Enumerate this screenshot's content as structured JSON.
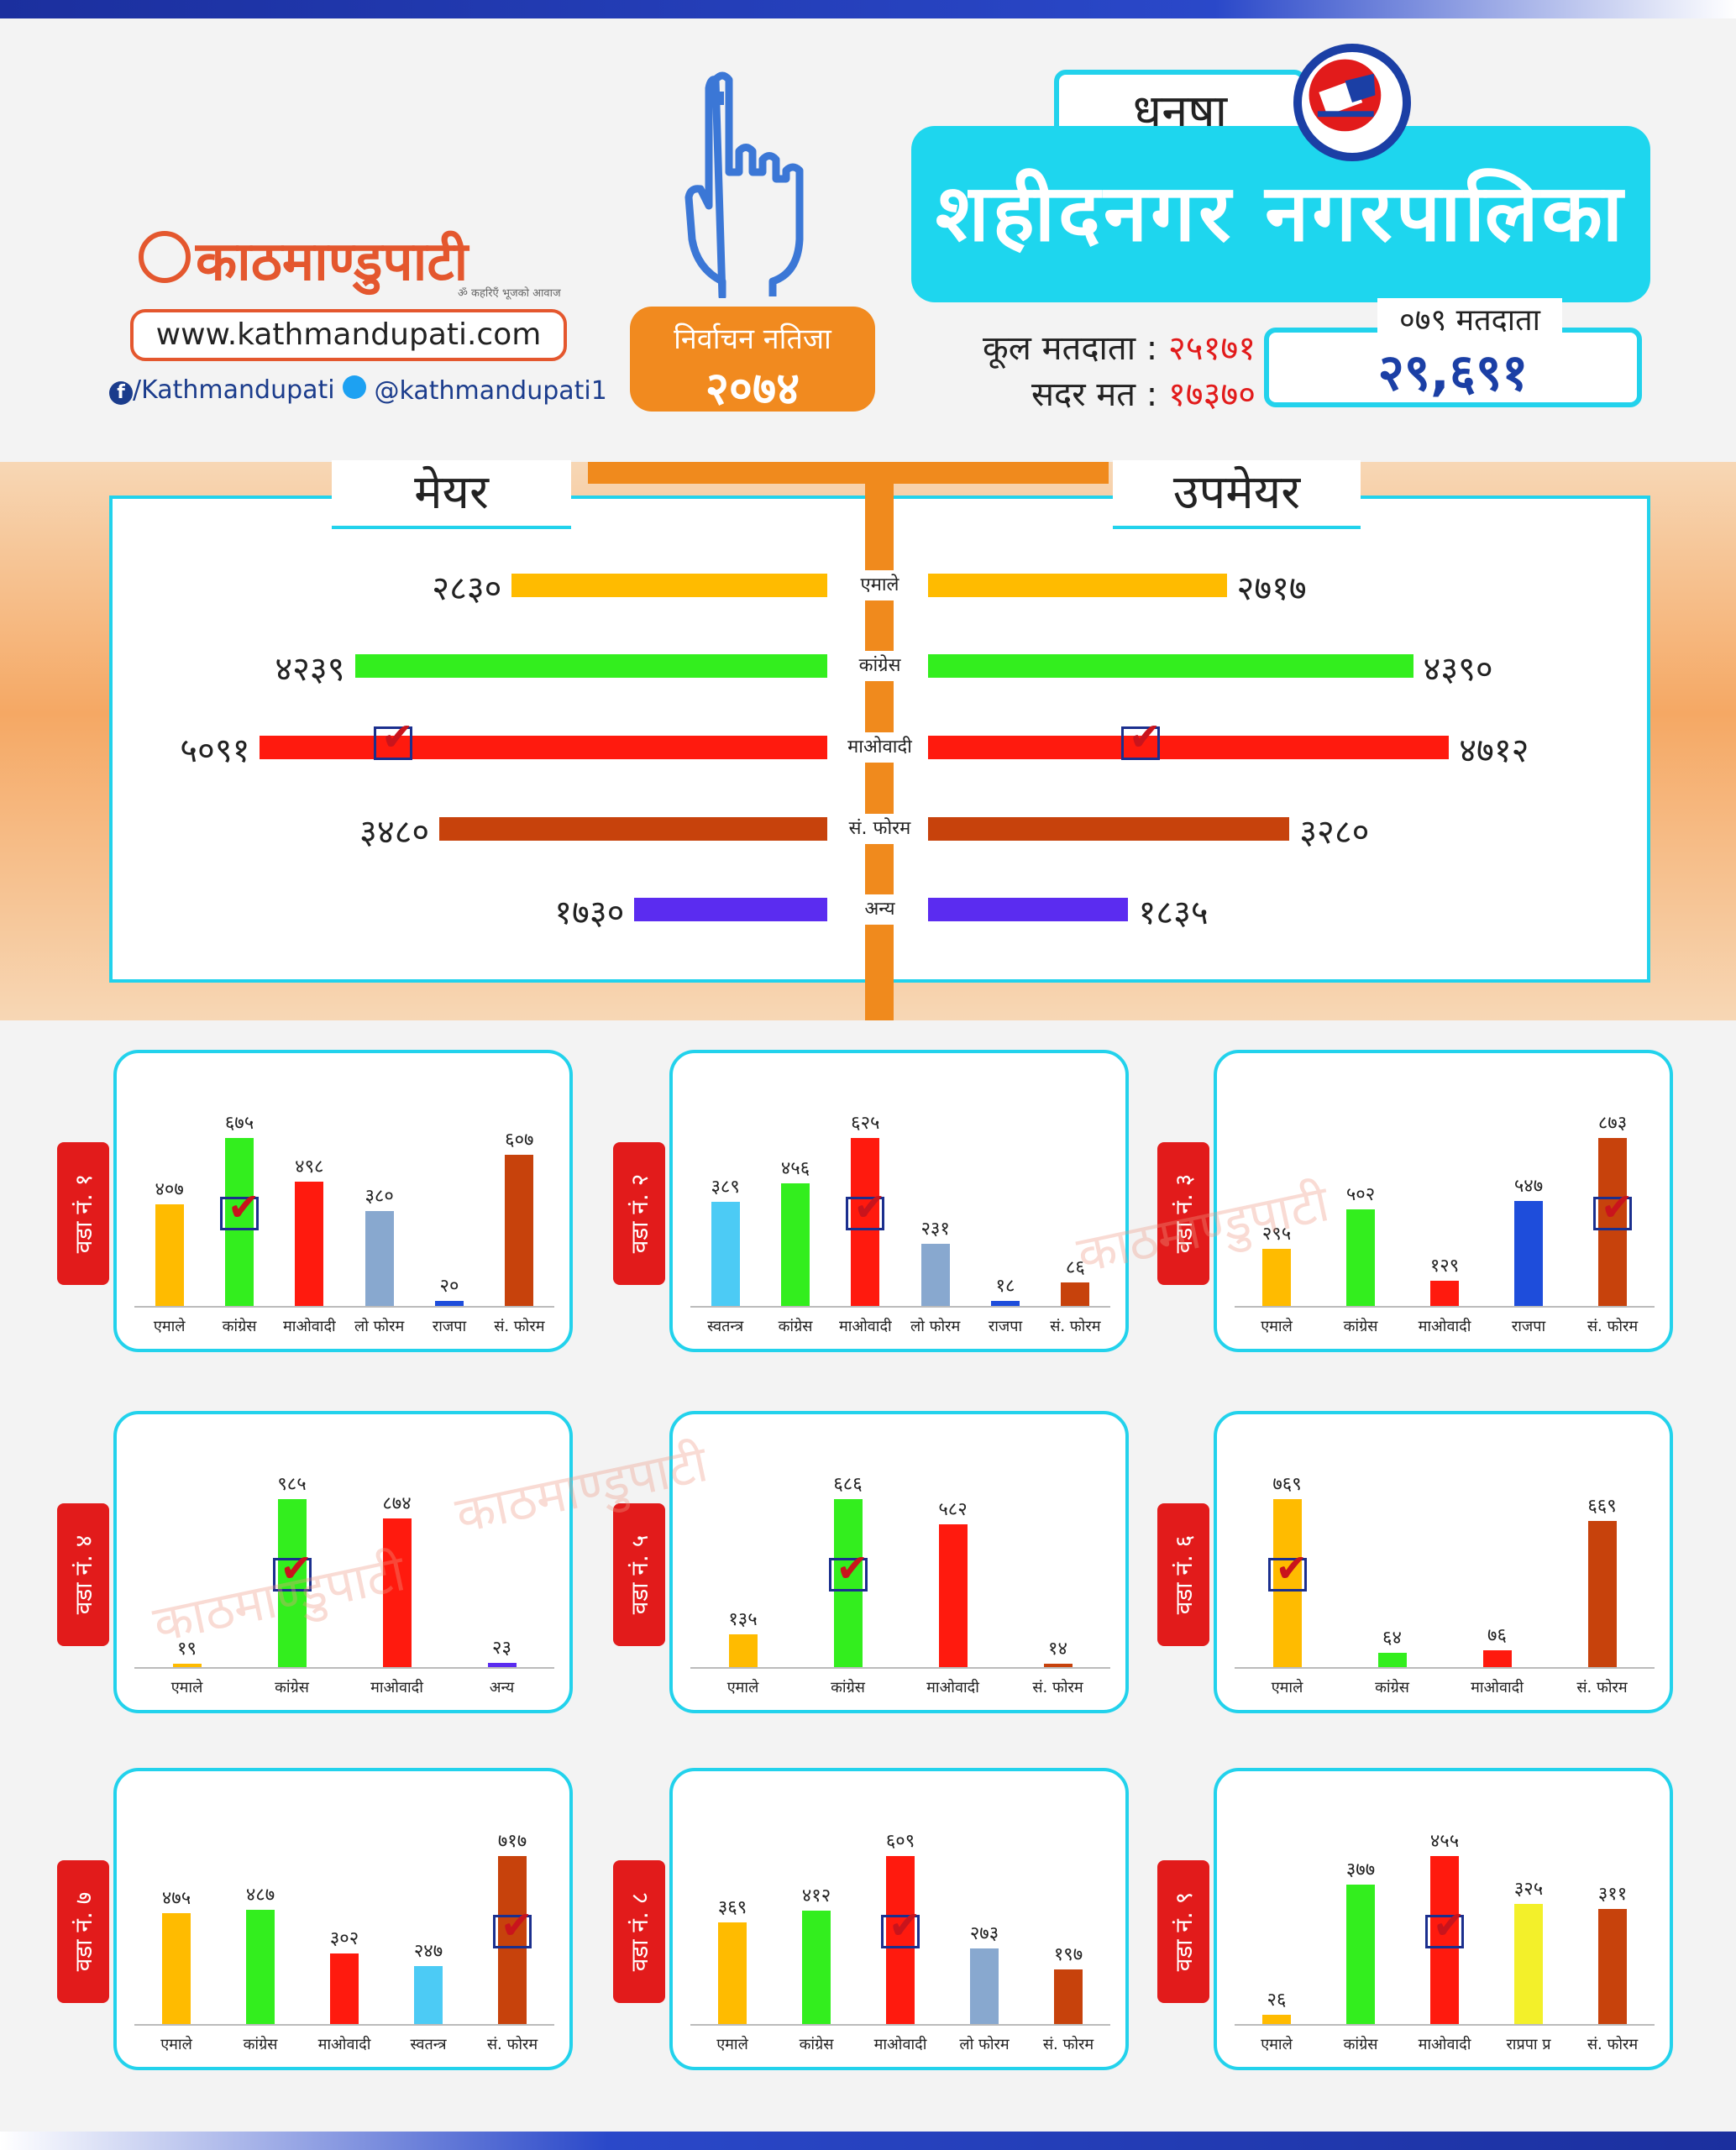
{
  "header": {
    "logo_text": "काठमाण्डुपाटी",
    "logo_sub": "ॐ कहरिएँ भूजको आवाज",
    "website": "www.kathmandupati.com",
    "facebook": "/Kathmandupati",
    "twitter": "@kathmandupati1",
    "result_title": "निर्वाचन नतिजा",
    "result_year": "२०७४",
    "district": "धनुषा",
    "municipality": "शहीदनगर  नगरपालिका",
    "total_voters_label": "कूल मतदाता :",
    "total_voters_value": "२५१७१",
    "valid_votes_label": "सदर मत :",
    "valid_votes_value": "१७३७०",
    "voters_079_label": "०७९ मतदाता",
    "voters_079_value": "२९,६९१",
    "watermark": "काठमाण्डुपाटी"
  },
  "colors": {
    "emale": "#ffbb00",
    "congress": "#33ee1e",
    "maoist": "#ff1a0e",
    "forum": "#c7420c",
    "other": "#5b2cf0",
    "lo_forum": "#88a8cf",
    "rajpa": "#1e4ddb",
    "swatantra": "#4ccbf5",
    "rajpa_pra": "#f3f02a"
  },
  "chart_data": [
    {
      "type": "bar",
      "orientation": "horizontal-butterfly",
      "left_title": "मेयर",
      "right_title": "उपमेयर",
      "categories": [
        "एमाले",
        "कांग्रेस",
        "माओवादी",
        "सं. फोरम",
        "अन्य"
      ],
      "color_keys": [
        "emale",
        "congress",
        "maoist",
        "forum",
        "other"
      ],
      "mayor": [
        2830,
        4239,
        5091,
        3480,
        1730
      ],
      "mayor_labels": [
        "२८३०",
        "४२३९",
        "५०९१",
        "३४८०",
        "१७३०"
      ],
      "deputy": [
        2717,
        4390,
        4712,
        3280,
        1835
      ],
      "deputy_labels": [
        "२७१७",
        "४३९०",
        "४७१२",
        "३२८०",
        "१८३५"
      ],
      "winner_index": 2
    },
    {
      "type": "bar",
      "ward": "वडा नं. १",
      "categories": [
        "एमाले",
        "कांग्रेस",
        "माओवादी",
        "लो फोरम",
        "राजपा",
        "सं. फोरम"
      ],
      "color_keys": [
        "emale",
        "congress",
        "maoist",
        "lo_forum",
        "rajpa",
        "forum"
      ],
      "values": [
        407,
        675,
        498,
        380,
        20,
        607
      ],
      "labels": [
        "४०७",
        "६७५",
        "४९८",
        "३८०",
        "२०",
        "६०७"
      ],
      "winner_index": 1
    },
    {
      "type": "bar",
      "ward": "वडा नं. २",
      "categories": [
        "स्वतन्त्र",
        "कांग्रेस",
        "माओवादी",
        "लो फोरम",
        "राजपा",
        "सं. फोरम"
      ],
      "color_keys": [
        "swatantra",
        "congress",
        "maoist",
        "lo_forum",
        "rajpa",
        "forum"
      ],
      "values": [
        389,
        456,
        625,
        231,
        18,
        86
      ],
      "labels": [
        "३८९",
        "४५६",
        "६२५",
        "२३१",
        "१८",
        "८६"
      ],
      "winner_index": 2
    },
    {
      "type": "bar",
      "ward": "वडा नं. ३",
      "categories": [
        "एमाले",
        "कांग्रेस",
        "माओवादी",
        "राजपा",
        "सं. फोरम"
      ],
      "color_keys": [
        "emale",
        "congress",
        "maoist",
        "rajpa",
        "forum"
      ],
      "values": [
        295,
        502,
        129,
        547,
        873
      ],
      "labels": [
        "२९५",
        "५०२",
        "१२९",
        "५४७",
        "८७३"
      ],
      "winner_index": 4
    },
    {
      "type": "bar",
      "ward": "वडा नं. ४",
      "categories": [
        "एमाले",
        "कांग्रेस",
        "माओवादी",
        "अन्य"
      ],
      "color_keys": [
        "emale",
        "congress",
        "maoist",
        "other"
      ],
      "values": [
        19,
        985,
        874,
        23
      ],
      "labels": [
        "१९",
        "९८५",
        "८७४",
        "२३"
      ],
      "winner_index": 1
    },
    {
      "type": "bar",
      "ward": "वडा नं. ५",
      "categories": [
        "एमाले",
        "कांग्रेस",
        "माओवादी",
        "सं. फोरम"
      ],
      "color_keys": [
        "emale",
        "congress",
        "maoist",
        "forum"
      ],
      "values": [
        135,
        686,
        582,
        14
      ],
      "labels": [
        "१३५",
        "६८६",
        "५८२",
        "१४"
      ],
      "winner_index": 1
    },
    {
      "type": "bar",
      "ward": "वडा नं. ६",
      "categories": [
        "एमाले",
        "कांग्रेस",
        "माओवादी",
        "सं. फोरम"
      ],
      "color_keys": [
        "emale",
        "congress",
        "maoist",
        "forum"
      ],
      "values": [
        769,
        64,
        76,
        669
      ],
      "labels": [
        "७६९",
        "६४",
        "७६",
        "६६९"
      ],
      "winner_index": 0
    },
    {
      "type": "bar",
      "ward": "वडा नं. ७",
      "categories": [
        "एमाले",
        "कांग्रेस",
        "माओवादी",
        "स्वतन्त्र",
        "सं. फोरम"
      ],
      "color_keys": [
        "emale",
        "congress",
        "maoist",
        "swatantra",
        "forum"
      ],
      "values": [
        475,
        487,
        302,
        247,
        717
      ],
      "labels": [
        "४७५",
        "४८७",
        "३०२",
        "२४७",
        "७१७"
      ],
      "winner_index": 4
    },
    {
      "type": "bar",
      "ward": "वडा नं. ८",
      "categories": [
        "एमाले",
        "कांग्रेस",
        "माओवादी",
        "लो फोरम",
        "सं. फोरम"
      ],
      "color_keys": [
        "emale",
        "congress",
        "maoist",
        "lo_forum",
        "forum"
      ],
      "values": [
        369,
        412,
        609,
        273,
        197
      ],
      "labels": [
        "३६९",
        "४१२",
        "६०९",
        "२७३",
        "१९७"
      ],
      "winner_index": 2
    },
    {
      "type": "bar",
      "ward": "वडा नं. ९",
      "categories": [
        "एमाले",
        "कांग्रेस",
        "माओवादी",
        "राप्रपा प्र",
        "सं. फोरम"
      ],
      "color_keys": [
        "emale",
        "congress",
        "maoist",
        "rajpa_pra",
        "forum"
      ],
      "values": [
        26,
        377,
        455,
        325,
        311
      ],
      "labels": [
        "२६",
        "३७७",
        "४५५",
        "३२५",
        "३११"
      ],
      "winner_index": 2
    }
  ]
}
